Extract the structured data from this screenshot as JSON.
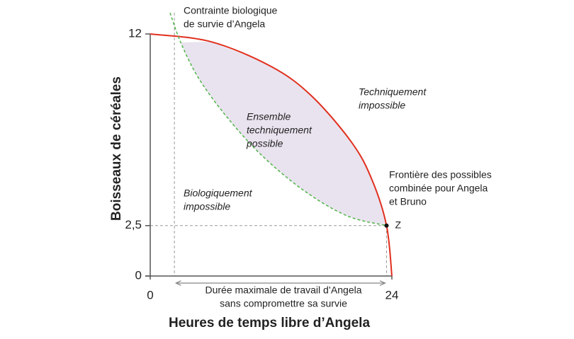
{
  "chart_data": {
    "type": "line",
    "x_label": "Heures de temps libre d’Angela",
    "y_label": "Boisseaux de céréales",
    "xlim": [
      0,
      24
    ],
    "ylim": [
      0,
      12
    ],
    "xticks": [
      0,
      24
    ],
    "yticks": [
      0,
      {
        "value": 2.5,
        "label": "2,5"
      },
      12
    ],
    "series": [
      {
        "color": "#e0301e",
        "dashed": false,
        "x": [
          0,
          6,
          12,
          16,
          20,
          22,
          23.47,
          24
        ],
        "values": [
          12,
          11.62,
          10.39,
          8.94,
          6.63,
          4.8,
          2.5,
          0
        ]
      },
      {
        "color": "#4fb548",
        "dashed": true,
        "x": [
          1.97,
          3.03,
          4.79,
          7.6,
          11.12,
          15.34,
          19.57,
          23.47
        ],
        "values": [
          13.05,
          11.58,
          9.82,
          7.89,
          5.96,
          4.21,
          2.98,
          2.5
        ]
      }
    ],
    "fill_color": "#e9e3ef",
    "constraint_x": 2.4,
    "point": {
      "label": "Z",
      "x": 23.47,
      "y": 2.5
    },
    "annotations": [
      {
        "lines": [
          "Contrainte biologique",
          "de survie d’Angela"
        ],
        "italic": false
      },
      {
        "lines": [
          "Techniquement",
          "impossible"
        ],
        "italic": true
      },
      {
        "lines": [
          "Ensemble",
          "techniquement",
          "possible"
        ],
        "italic": true
      },
      {
        "lines": [
          "Frontière des possibles",
          "combinée pour Angela",
          "et Bruno"
        ],
        "italic": false
      },
      {
        "lines": [
          "Biologiquement",
          "impossible"
        ],
        "italic": true
      }
    ],
    "range_label": {
      "lines": [
        "Durée maximale de travail d’Angela",
        "sans compromettre sa survie"
      ]
    }
  }
}
